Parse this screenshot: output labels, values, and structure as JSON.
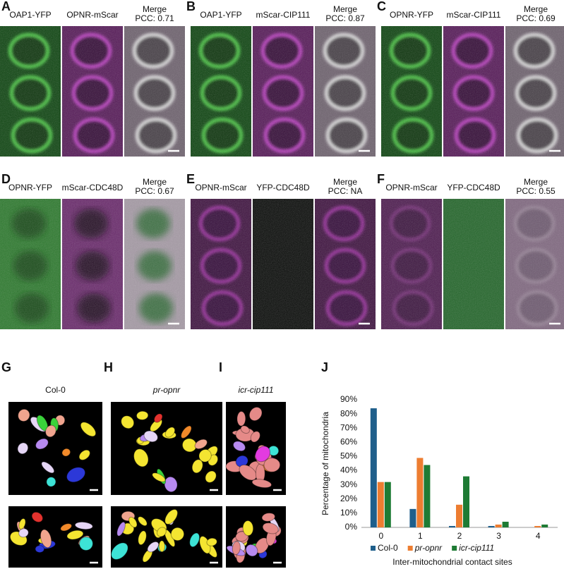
{
  "panels": [
    {
      "letter": "A",
      "channels": [
        "OAP1-YFP",
        "OPNR-mScar"
      ],
      "merge": "Merge",
      "pcc": "PCC: 0.71"
    },
    {
      "letter": "B",
      "channels": [
        "OAP1-YFP",
        "mScar-CIP111"
      ],
      "merge": "Merge",
      "pcc": "PCC: 0.87"
    },
    {
      "letter": "C",
      "channels": [
        "OPNR-YFP",
        "mScar-CIP111"
      ],
      "merge": "Merge",
      "pcc": "PCC: 0.69"
    },
    {
      "letter": "D",
      "channels": [
        "OPNR-YFP",
        "mScar-CDC48D"
      ],
      "merge": "Merge",
      "pcc": "PCC: 0.67"
    },
    {
      "letter": "E",
      "channels": [
        "OPNR-mScar",
        "YFP-CDC48D"
      ],
      "merge": "Merge",
      "pcc": "PCC: NA"
    },
    {
      "letter": "F",
      "channels": [
        "OPNR-mScar",
        "YFP-CDC48D"
      ],
      "merge": "Merge",
      "pcc": "PCC: 0.55"
    }
  ],
  "renders": [
    {
      "letter": "G",
      "title": "Col-0",
      "italic": false
    },
    {
      "letter": "H",
      "title": "pr-opnr",
      "italic": true
    },
    {
      "letter": "I",
      "title": "icr-cip111",
      "italic": true
    }
  ],
  "chart_panel": "J",
  "chart_data": {
    "type": "bar",
    "y_label": "Percentage of mitochondria",
    "x_label": "Inter-mitochondrial contact sites",
    "categories": [
      "0",
      "1",
      "2",
      "3",
      "4"
    ],
    "series": [
      {
        "name": "Col-0",
        "color": "#1f5f8b",
        "italic": false,
        "values": [
          84,
          13,
          1,
          1,
          0
        ]
      },
      {
        "name": "pr-opnr",
        "color": "#ed7d31",
        "italic": true,
        "values": [
          32,
          49,
          16,
          2,
          1
        ]
      },
      {
        "name": "icr-cip111",
        "color": "#1e7b34",
        "italic": true,
        "values": [
          32,
          44,
          36,
          4,
          2
        ]
      }
    ],
    "ylim": [
      0,
      90
    ],
    "yticks": [
      {
        "value": 0,
        "label": "0%"
      },
      {
        "value": 10,
        "label": "10%"
      },
      {
        "value": 20,
        "label": "20%"
      },
      {
        "value": 30,
        "label": "30%"
      },
      {
        "value": 40,
        "label": "40%"
      },
      {
        "value": 50,
        "label": "50%"
      },
      {
        "value": 60,
        "label": "60%"
      },
      {
        "value": 70,
        "label": "70%"
      },
      {
        "value": 80,
        "label": "80%"
      },
      {
        "value": 90,
        "label": "90%"
      }
    ],
    "grid": false,
    "legend": "bottom"
  }
}
